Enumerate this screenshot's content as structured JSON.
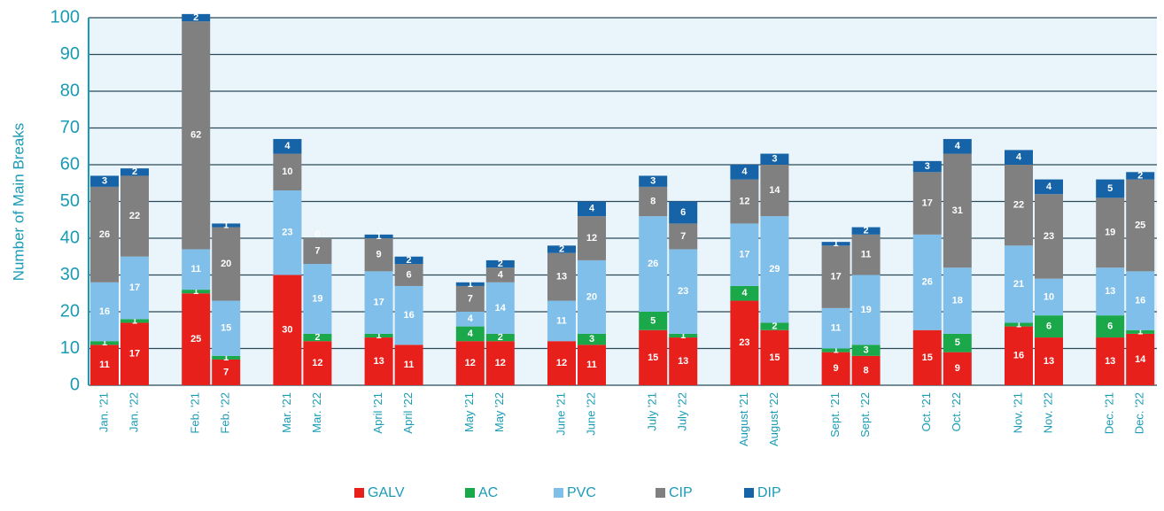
{
  "chart_data": {
    "type": "stacked_bar",
    "y_label": "Number of Main Breaks",
    "categories": [
      "Jan. '21",
      "Jan. '22",
      "Feb. '21",
      "Feb. '22",
      "Mar. '21",
      "Mar. '22",
      "April '21",
      "April '22",
      "May '21",
      "May '22",
      "June '21",
      "June '22",
      "July '21",
      "July '22",
      "August '21",
      "August '22",
      "Sept. '21",
      "Sept. '22",
      "Oct. '21",
      "Oct. '22",
      "Nov. '21",
      "Nov. '22",
      "Dec. '21",
      "Dec. '22"
    ],
    "series": [
      {
        "name": "GALV",
        "color": "#e8201c",
        "values": [
          11,
          17,
          25,
          7,
          30,
          12,
          13,
          11,
          12,
          12,
          12,
          11,
          15,
          13,
          23,
          15,
          9,
          8,
          15,
          9,
          16,
          13,
          13,
          14
        ]
      },
      {
        "name": "AC",
        "color": "#1aa84a",
        "values": [
          1,
          1,
          1,
          1,
          0,
          2,
          1,
          0,
          4,
          2,
          0,
          3,
          5,
          1,
          4,
          2,
          1,
          3,
          0,
          5,
          1,
          6,
          6,
          1
        ]
      },
      {
        "name": "PVC",
        "color": "#7fbfea",
        "values": [
          16,
          17,
          11,
          15,
          23,
          19,
          17,
          16,
          4,
          14,
          11,
          20,
          26,
          23,
          17,
          29,
          11,
          19,
          26,
          18,
          21,
          10,
          13,
          16
        ]
      },
      {
        "name": "CIP",
        "color": "#808080",
        "values": [
          26,
          22,
          62,
          20,
          10,
          7,
          9,
          6,
          7,
          4,
          13,
          12,
          8,
          7,
          12,
          14,
          17,
          11,
          17,
          31,
          22,
          23,
          19,
          25
        ]
      },
      {
        "name": "DIP",
        "color": "#1663a8",
        "values": [
          3,
          2,
          2,
          1,
          4,
          0,
          1,
          2,
          1,
          2,
          2,
          4,
          3,
          6,
          4,
          3,
          1,
          2,
          3,
          4,
          4,
          4,
          5,
          2
        ]
      }
    ],
    "ylim": [
      0,
      100
    ],
    "yticks": [
      0,
      10,
      20,
      30,
      40,
      50,
      60,
      70,
      80,
      90,
      100
    ],
    "grid": true
  }
}
